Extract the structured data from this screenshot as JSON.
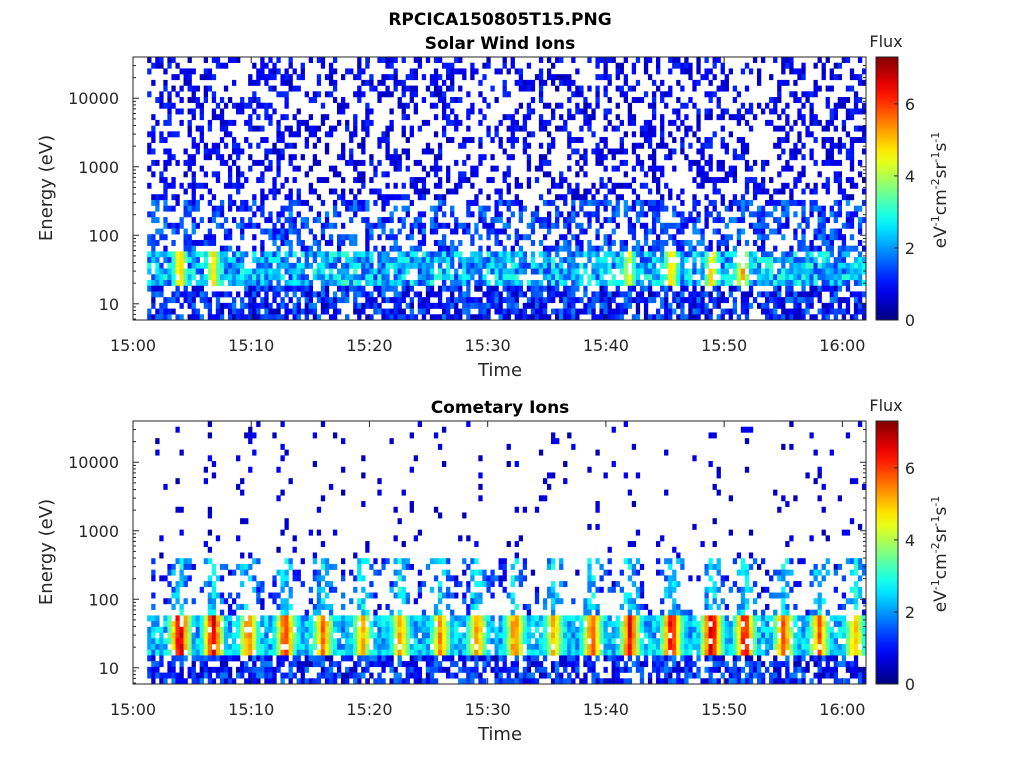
{
  "page_title": "RPCICA150805T15.PNG",
  "chart_data": [
    {
      "type": "heatmap",
      "title": "Solar Wind Ions",
      "xlabel": "Time",
      "ylabel": "Energy (eV)",
      "x_ticks": [
        "15:00",
        "15:10",
        "15:20",
        "15:30",
        "15:40",
        "15:50",
        "16:00"
      ],
      "x_tick_minutes": [
        0,
        10,
        20,
        30,
        40,
        50,
        60
      ],
      "xlim_minutes": [
        0,
        62
      ],
      "y_scale": "log",
      "y_ticks": [
        "10",
        "100",
        "1000",
        "10000"
      ],
      "y_tick_values": [
        10,
        100,
        1000,
        10000
      ],
      "ylim": [
        5.8,
        40000
      ],
      "colorbar": {
        "label": "Flux",
        "unit": "eV-1cm-2sr-1s-1",
        "ticks": [
          "0",
          "2",
          "4",
          "6"
        ],
        "tick_values": [
          0,
          2,
          4,
          6
        ],
        "range": [
          0,
          7.3
        ],
        "colormap": "jet"
      },
      "data_start_minute": 1.2,
      "data_description_peaks": [
        {
          "minute": 3.8,
          "energy_eV": 35,
          "flux": 5.2
        },
        {
          "minute": 6.6,
          "energy_eV": 35,
          "flux": 4.8
        },
        {
          "minute": 41.7,
          "energy_eV": 35,
          "flux": 4.5
        },
        {
          "minute": 45.3,
          "energy_eV": 35,
          "flux": 5.0
        },
        {
          "minute": 48.7,
          "energy_eV": 35,
          "flux": 5.0
        },
        {
          "minute": 51.3,
          "energy_eV": 35,
          "flux": 5.2
        }
      ]
    },
    {
      "type": "heatmap",
      "title": "Cometary Ions",
      "xlabel": "Time",
      "ylabel": "Energy (eV)",
      "x_ticks": [
        "15:00",
        "15:10",
        "15:20",
        "15:30",
        "15:40",
        "15:50",
        "16:00"
      ],
      "x_tick_minutes": [
        0,
        10,
        20,
        30,
        40,
        50,
        60
      ],
      "xlim_minutes": [
        0,
        62
      ],
      "y_scale": "log",
      "y_ticks": [
        "10",
        "100",
        "1000",
        "10000"
      ],
      "y_tick_values": [
        10,
        100,
        1000,
        10000
      ],
      "ylim": [
        5.8,
        40000
      ],
      "colorbar": {
        "label": "Flux",
        "unit": "eV-1cm-2sr-1s-1",
        "ticks": [
          "0",
          "2",
          "4",
          "6"
        ],
        "tick_values": [
          0,
          2,
          4,
          6
        ],
        "range": [
          0,
          7.3
        ],
        "colormap": "jet"
      },
      "data_start_minute": 1.2,
      "data_description_peaks": [
        {
          "minute": 3.8,
          "energy_eV": 35,
          "flux": 6.8
        },
        {
          "minute": 6.6,
          "energy_eV": 35,
          "flux": 6.5
        },
        {
          "minute": 9.6,
          "energy_eV": 25,
          "flux": 5.5
        },
        {
          "minute": 12.7,
          "energy_eV": 30,
          "flux": 6.0
        },
        {
          "minute": 15.9,
          "energy_eV": 30,
          "flux": 5.5
        },
        {
          "minute": 19.2,
          "energy_eV": 28,
          "flux": 5.0
        },
        {
          "minute": 22.4,
          "energy_eV": 28,
          "flux": 5.0
        },
        {
          "minute": 25.8,
          "energy_eV": 28,
          "flux": 5.2
        },
        {
          "minute": 28.9,
          "energy_eV": 28,
          "flux": 5.2
        },
        {
          "minute": 32.1,
          "energy_eV": 28,
          "flux": 5.5
        },
        {
          "minute": 35.4,
          "energy_eV": 28,
          "flux": 5.0
        },
        {
          "minute": 38.6,
          "energy_eV": 30,
          "flux": 5.8
        },
        {
          "minute": 41.8,
          "energy_eV": 35,
          "flux": 6.2
        },
        {
          "minute": 45.3,
          "energy_eV": 35,
          "flux": 6.5
        },
        {
          "minute": 48.7,
          "energy_eV": 35,
          "flux": 6.8
        },
        {
          "minute": 51.5,
          "energy_eV": 35,
          "flux": 6.5
        },
        {
          "minute": 54.8,
          "energy_eV": 30,
          "flux": 5.8
        },
        {
          "minute": 57.8,
          "energy_eV": 30,
          "flux": 5.5
        },
        {
          "minute": 60.8,
          "energy_eV": 22,
          "flux": 5.0
        }
      ]
    }
  ]
}
